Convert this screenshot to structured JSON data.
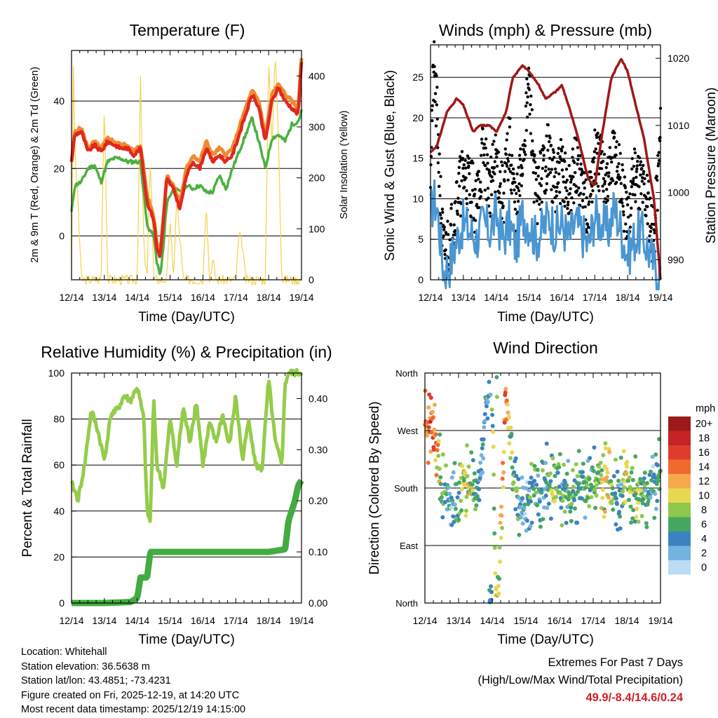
{
  "colors": {
    "temp2m": "#e0281c",
    "temp9m": "#f08a30",
    "dewpoint": "#4cb040",
    "solar": "#f4d24c",
    "gust": "#000000",
    "wind": "#4a96d2",
    "pressure": "#a01818",
    "rh": "#94cc4a",
    "precip": "#42ac40",
    "extremes": "#d0202a"
  },
  "chart_data": [
    {
      "id": "temperature",
      "type": "line",
      "title": "Temperature (F)",
      "xlabel": "Time (Day/UTC)",
      "ylabel": "2m & 9m T (Red, Orange) & 2m Td (Green)",
      "ylabel_right": "Solar Insolation (Yellow)",
      "xlim": [
        0,
        7
      ],
      "ylim": [
        -13,
        55
      ],
      "ylim_right": [
        0,
        450
      ],
      "x_ticks": [
        "12/14",
        "13/14",
        "14/14",
        "15/14",
        "16/14",
        "17/14",
        "18/14",
        "19/14"
      ],
      "y_ticks": [
        0,
        20,
        40
      ],
      "y_ticks_right": [
        0,
        100,
        200,
        300,
        400
      ],
      "gridlines": [
        0,
        20,
        40
      ],
      "series": [
        {
          "name": "2m T",
          "x": [
            0,
            0.1,
            0.3,
            0.5,
            0.7,
            0.9,
            1.1,
            1.3,
            1.5,
            1.7,
            1.9,
            2.1,
            2.3,
            2.5,
            2.6,
            2.7,
            2.8,
            2.9,
            3.1,
            3.3,
            3.5,
            3.7,
            3.9,
            4.1,
            4.3,
            4.5,
            4.7,
            4.9,
            5.1,
            5.3,
            5.5,
            5.7,
            5.9,
            6.1,
            6.3,
            6.5,
            6.7,
            6.9,
            7
          ],
          "values": [
            22,
            30,
            31,
            25,
            27,
            25,
            28,
            27,
            26,
            26,
            24,
            26,
            10,
            5,
            -4,
            -6,
            5,
            17,
            14,
            8,
            18,
            22,
            20,
            26,
            22,
            24,
            22,
            24,
            30,
            36,
            42,
            38,
            28,
            40,
            44,
            40,
            38,
            36,
            52
          ]
        },
        {
          "name": "9m T",
          "x": [
            0,
            0.1,
            0.3,
            0.5,
            0.7,
            0.9,
            1.1,
            1.3,
            1.5,
            1.7,
            1.9,
            2.1,
            2.3,
            2.5,
            2.6,
            2.7,
            2.8,
            2.9,
            3.1,
            3.3,
            3.5,
            3.7,
            3.9,
            4.1,
            4.3,
            4.5,
            4.7,
            4.9,
            5.1,
            5.3,
            5.5,
            5.7,
            5.9,
            6.1,
            6.3,
            6.5,
            6.7,
            6.9,
            7
          ],
          "values": [
            22,
            31,
            32,
            26,
            28,
            26,
            29,
            28,
            27,
            27,
            25,
            27,
            12,
            6,
            -2,
            -5,
            6,
            18,
            15,
            10,
            20,
            24,
            22,
            28,
            24,
            26,
            24,
            26,
            32,
            38,
            43,
            40,
            30,
            42,
            45,
            42,
            40,
            38,
            53
          ]
        },
        {
          "name": "2m Td",
          "x": [
            0,
            0.1,
            0.3,
            0.5,
            0.7,
            0.9,
            1.1,
            1.3,
            1.5,
            1.7,
            1.9,
            2.1,
            2.3,
            2.5,
            2.6,
            2.7,
            2.8,
            2.9,
            3.1,
            3.3,
            3.5,
            3.7,
            3.9,
            4.1,
            4.3,
            4.5,
            4.7,
            4.9,
            5.1,
            5.3,
            5.5,
            5.7,
            5.9,
            6.1,
            6.3,
            6.5,
            6.7,
            6.9,
            7
          ],
          "values": [
            7,
            15,
            16,
            20,
            21,
            16,
            22,
            23,
            23,
            22,
            22,
            22,
            3,
            0,
            -8,
            -12,
            -3,
            10,
            14,
            13,
            15,
            14,
            15,
            13,
            13,
            18,
            14,
            20,
            25,
            30,
            35,
            28,
            20,
            29,
            30,
            28,
            33,
            34,
            37
          ]
        },
        {
          "name": "Solar Insolation",
          "axis": "right",
          "x": [
            0,
            0.05,
            0.1,
            0.2,
            0.3,
            0.9,
            1.0,
            1.1,
            1.3,
            2.0,
            2.1,
            2.2,
            2.3,
            2.4,
            2.5,
            2.9,
            3.0,
            3.1,
            3.2,
            3.4,
            4.0,
            4.1,
            4.2,
            4.3,
            4.4,
            5.0,
            5.1,
            5.2,
            5.3,
            5.4,
            5.9,
            6.0,
            6.1,
            6.2,
            6.3,
            6.4,
            7
          ],
          "values": [
            0,
            440,
            260,
            150,
            0,
            0,
            360,
            0,
            0,
            0,
            390,
            60,
            0,
            250,
            0,
            0,
            120,
            0,
            160,
            0,
            0,
            160,
            0,
            40,
            0,
            0,
            90,
            70,
            0,
            0,
            0,
            440,
            260,
            450,
            280,
            0,
            0
          ]
        }
      ]
    },
    {
      "id": "winds",
      "type": "scatter",
      "title": "Winds (mph) & Pressure (mb)",
      "xlabel": "Time (Day/UTC)",
      "ylabel": "Sonic Wind & Gust (Blue, Black)",
      "ylabel_right": "Station Pressure (Maroon)",
      "xlim": [
        0,
        7
      ],
      "ylim": [
        0,
        29
      ],
      "ylim_right": [
        987,
        1022
      ],
      "x_ticks": [
        "12/14",
        "13/14",
        "14/14",
        "15/14",
        "16/14",
        "17/14",
        "18/14",
        "19/14"
      ],
      "y_ticks": [
        0,
        5,
        10,
        15,
        20,
        25
      ],
      "y_ticks_right": [
        990,
        1000,
        1010,
        1020
      ],
      "gridlines": [
        5,
        10,
        15,
        20,
        25
      ],
      "series": [
        {
          "name": "Sonic Wind",
          "x": [
            0,
            0.1,
            0.2,
            0.3,
            0.4,
            0.6,
            0.8,
            1.0,
            1.2,
            1.4,
            1.6,
            1.8,
            2.0,
            2.2,
            2.4,
            2.6,
            2.8,
            3.0,
            3.2,
            3.4,
            3.6,
            3.8,
            4.0,
            4.2,
            4.4,
            4.6,
            4.8,
            5.0,
            5.2,
            5.4,
            5.6,
            5.8,
            6.0,
            6.2,
            6.4,
            6.6,
            6.8,
            7
          ],
          "values": [
            8,
            10,
            9,
            5,
            1,
            2,
            5,
            7,
            6,
            5,
            7,
            6,
            8,
            5,
            7,
            4,
            8,
            7,
            5,
            6,
            8,
            6,
            7,
            5,
            7,
            6,
            4,
            8,
            7,
            6,
            9,
            6,
            3,
            5,
            6,
            4,
            2,
            1
          ]
        },
        {
          "name": "Gust",
          "x": [
            0,
            0.1,
            0.2,
            0.3,
            0.4,
            0.6,
            0.8,
            1.0,
            1.2,
            1.4,
            1.6,
            1.8,
            2.0,
            2.2,
            2.4,
            2.6,
            2.8,
            3.0,
            3.2,
            3.4,
            3.6,
            3.8,
            4.0,
            4.2,
            4.4,
            4.6,
            4.8,
            5.0,
            5.2,
            5.4,
            5.6,
            5.8,
            6.0,
            6.2,
            6.4,
            6.6,
            6.8,
            7
          ],
          "values": [
            15,
            26,
            20,
            10,
            3,
            5,
            10,
            13,
            12,
            9,
            16,
            11,
            15,
            10,
            17,
            8,
            15,
            24,
            10,
            13,
            16,
            11,
            14,
            10,
            14,
            12,
            9,
            15,
            14,
            12,
            16,
            12,
            6,
            14,
            12,
            10,
            5,
            18
          ]
        },
        {
          "name": "Station Pressure",
          "axis": "right",
          "x": [
            0,
            0.2,
            0.5,
            0.8,
            1.0,
            1.3,
            1.5,
            1.8,
            2.0,
            2.3,
            2.5,
            2.8,
            3.0,
            3.3,
            3.5,
            3.8,
            4.0,
            4.2,
            4.5,
            4.8,
            5.0,
            5.2,
            5.5,
            5.8,
            6.0,
            6.2,
            6.5,
            6.8,
            7
          ],
          "values": [
            1006,
            1007,
            1012,
            1014,
            1013,
            1009,
            1010,
            1010,
            1009,
            1012,
            1017,
            1019,
            1018,
            1016,
            1014,
            1015,
            1016,
            1013,
            1008,
            1002,
            1001,
            1008,
            1017,
            1020,
            1018,
            1014,
            1008,
            999,
            987
          ]
        }
      ]
    },
    {
      "id": "humidity",
      "type": "line",
      "title": "Relative Humidity (%) & Precipitation (in)",
      "xlabel": "Time (Day/UTC)",
      "ylabel": "Percent & Total Rainfall",
      "xlim": [
        0,
        7
      ],
      "ylim": [
        0,
        100
      ],
      "ylim_right": [
        0,
        0.45
      ],
      "x_ticks": [
        "12/14",
        "13/14",
        "14/14",
        "15/14",
        "16/14",
        "17/14",
        "18/14",
        "19/14"
      ],
      "y_ticks": [
        0,
        20,
        40,
        60,
        80,
        100
      ],
      "y_ticks_right": [
        "0.00",
        "0.10",
        "0.20",
        "0.30",
        "0.40"
      ],
      "gridlines": [
        20,
        40,
        60,
        80
      ],
      "series": [
        {
          "name": "Relative Humidity",
          "x": [
            0,
            0.2,
            0.4,
            0.6,
            0.8,
            1.0,
            1.2,
            1.4,
            1.6,
            1.8,
            2.0,
            2.2,
            2.3,
            2.4,
            2.5,
            2.6,
            2.8,
            3.0,
            3.2,
            3.4,
            3.6,
            3.8,
            4.0,
            4.2,
            4.4,
            4.6,
            4.8,
            5.0,
            5.2,
            5.4,
            5.6,
            5.8,
            6.0,
            6.2,
            6.4,
            6.5,
            6.6,
            6.8,
            7
          ],
          "values": [
            52,
            45,
            60,
            84,
            75,
            62,
            82,
            84,
            90,
            88,
            94,
            80,
            40,
            35,
            90,
            60,
            50,
            80,
            60,
            85,
            70,
            88,
            60,
            78,
            70,
            82,
            68,
            90,
            62,
            80,
            60,
            58,
            97,
            70,
            60,
            95,
            100,
            100,
            100
          ]
        },
        {
          "name": "Total Precipitation",
          "axis": "right",
          "x": [
            0,
            1.0,
            1.8,
            2.0,
            2.1,
            2.2,
            2.3,
            2.4,
            3.0,
            4.0,
            5.0,
            6.0,
            6.5,
            6.55,
            6.6,
            6.7,
            6.8,
            6.9,
            7
          ],
          "values": [
            0,
            0,
            0.002,
            0.01,
            0.05,
            0.05,
            0.05,
            0.1,
            0.1,
            0.1,
            0.1,
            0.1,
            0.105,
            0.13,
            0.16,
            0.18,
            0.2,
            0.23,
            0.24
          ]
        }
      ]
    },
    {
      "id": "direction",
      "type": "scatter",
      "title": "Wind Direction",
      "xlabel": "Time (Day/UTC)",
      "ylabel": "Direction (Colored By Speed)",
      "xlim": [
        0,
        7
      ],
      "ylim": [
        0,
        360
      ],
      "x_ticks": [
        "12/14",
        "13/14",
        "14/14",
        "15/14",
        "16/14",
        "17/14",
        "18/14",
        "19/14"
      ],
      "y_ticks": [
        "North",
        "East",
        "South",
        "West",
        "North"
      ],
      "gridlines": [
        90,
        180,
        270
      ],
      "legend_title": "mph",
      "legend_labels": [
        "20+",
        "18",
        "16",
        "14",
        "12",
        "10",
        "8",
        "6",
        "4",
        "2",
        "0"
      ],
      "legend_colors": [
        "#9e1a1a",
        "#c42426",
        "#e03c2c",
        "#f06a30",
        "#f7a84a",
        "#e8d850",
        "#8ec84c",
        "#44a860",
        "#3c82c0",
        "#74b2e0",
        "#bcdcf4"
      ],
      "series": [
        {
          "name": "Direction",
          "x": [
            0.1,
            0.2,
            0.3,
            0.5,
            0.8,
            1.0,
            1.2,
            1.4,
            1.6,
            1.8,
            2.0,
            2.1,
            2.2,
            2.4,
            2.6,
            2.8,
            3.0,
            3.2,
            3.4,
            3.6,
            3.8,
            4.0,
            4.2,
            4.4,
            4.6,
            4.8,
            5.0,
            5.2,
            5.4,
            5.6,
            5.8,
            6.0,
            6.2,
            6.4,
            6.6,
            6.8,
            6.9
          ],
          "values": [
            280,
            290,
            270,
            180,
            150,
            170,
            190,
            180,
            165,
            300,
            350,
            10,
            20,
            340,
            220,
            160,
            140,
            180,
            170,
            185,
            175,
            180,
            170,
            165,
            180,
            175,
            180,
            190,
            200,
            170,
            175,
            180,
            170,
            180,
            175,
            175,
            200
          ],
          "speeds": [
            12,
            16,
            14,
            6,
            3,
            5,
            10,
            8,
            4,
            3,
            6,
            10,
            8,
            14,
            6,
            4,
            3,
            6,
            5,
            4,
            8,
            6,
            5,
            7,
            4,
            6,
            5,
            8,
            10,
            6,
            4,
            9,
            7,
            8,
            4,
            3,
            5
          ]
        }
      ]
    }
  ],
  "footer": {
    "location": "Location: Whitehall",
    "elevation": "Station elevation: 36.5638 m",
    "latlon": "Station lat/lon: 43.4851; -73.4231",
    "created": "Figure created on Fri, 2025-12-19, at 14:20 UTC",
    "recent": "Most recent data timestamp: 2025/12/19 14:15:00",
    "extremes_title": "Extremes For Past 7 Days",
    "extremes_subtitle": "(High/Low/Max Wind/Total Precipitation)",
    "extremes_value": "49.9/-8.4/14.6/0.24"
  }
}
